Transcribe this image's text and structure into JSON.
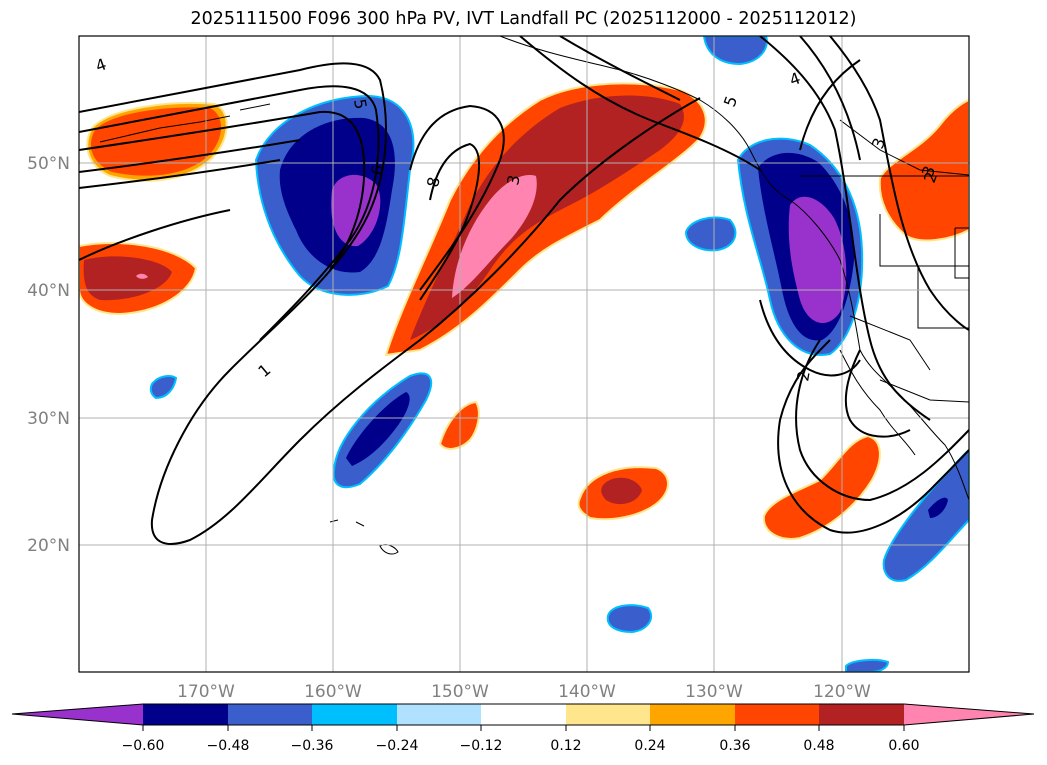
{
  "title": "2025111500 F096 300 hPa PV, IVT Landfall PC (2025112000 - 2025112012)",
  "map": {
    "lon_range": [
      -180,
      -110
    ],
    "lat_range": [
      10,
      60
    ],
    "lon_ticks": [
      "170°W",
      "160°W",
      "150°W",
      "140°W",
      "130°W",
      "120°W"
    ],
    "lat_ticks": [
      "50°N",
      "40°N",
      "30°N",
      "20°N"
    ],
    "contour_labels": [
      "4",
      "5",
      "6",
      "8",
      "3",
      "1",
      "5",
      "4",
      "3",
      "3",
      "2",
      "2"
    ]
  },
  "colorbar": {
    "ticks": [
      "−0.60",
      "−0.48",
      "−0.36",
      "−0.24",
      "−0.12",
      "0.12",
      "0.24",
      "0.36",
      "0.48",
      "0.60"
    ],
    "colors": [
      "#9932CC",
      "#00008B",
      "#3A5FCD",
      "#00BFFF",
      "#B0E2FF",
      "#FFFFFF",
      "#FFE68C",
      "#FFA500",
      "#FF4500",
      "#B22222",
      "#FF85B0"
    ],
    "extend": "both"
  }
}
